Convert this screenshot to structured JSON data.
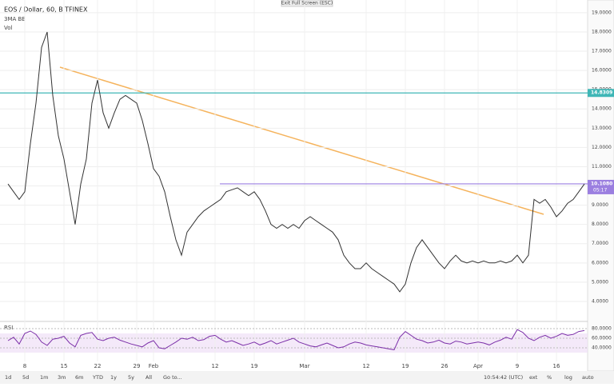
{
  "toolbar": {
    "exit": "Exit Full Screen (ESC)"
  },
  "legend": {
    "title": "EOS / Dollar, 60, BITFINEX",
    "indicators": [
      "3MA BB",
      "Vol"
    ]
  },
  "chart_data": [
    {
      "type": "line",
      "color": "#333333",
      "categories": [
        null,
        null,
        null,
        "8",
        null,
        null,
        null,
        null,
        null,
        null,
        "15",
        null,
        null,
        null,
        null,
        null,
        "22",
        null,
        null,
        null,
        null,
        null,
        null,
        "29",
        null,
        null,
        "Feb",
        null,
        null,
        null,
        null,
        null,
        null,
        null,
        null,
        null,
        null,
        "12",
        null,
        null,
        null,
        null,
        null,
        null,
        "19",
        null,
        null,
        null,
        null,
        null,
        null,
        null,
        null,
        "Mar",
        null,
        null,
        null,
        null,
        null,
        null,
        null,
        null,
        null,
        null,
        "12",
        null,
        null,
        null,
        null,
        null,
        null,
        "19",
        null,
        null,
        null,
        null,
        null,
        null,
        "26",
        null,
        null,
        null,
        null,
        null,
        "Apr",
        null,
        null,
        null,
        null,
        null,
        null,
        "9",
        null,
        null,
        null,
        null,
        null,
        null,
        "16",
        null,
        null,
        null,
        null,
        null
      ],
      "values": [
        10.1,
        9.7,
        9.3,
        9.7,
        12.2,
        14.3,
        17.2,
        18.0,
        14.7,
        12.6,
        11.4,
        9.7,
        8.0,
        10.1,
        11.4,
        14.3,
        15.5,
        13.8,
        13.0,
        13.8,
        14.5,
        14.7,
        14.5,
        14.3,
        13.4,
        12.2,
        10.9,
        10.5,
        9.7,
        8.4,
        7.2,
        6.4,
        7.6,
        8.0,
        8.4,
        8.7,
        8.9,
        9.1,
        9.3,
        9.7,
        9.8,
        9.9,
        9.7,
        9.5,
        9.7,
        9.3,
        8.7,
        8.0,
        7.8,
        8.0,
        7.8,
        8.0,
        7.8,
        8.2,
        8.4,
        8.2,
        8.0,
        7.8,
        7.6,
        7.2,
        6.4,
        6.0,
        5.7,
        5.7,
        6.0,
        5.7,
        5.5,
        5.3,
        5.1,
        4.9,
        4.5,
        4.9,
        6.0,
        6.8,
        7.2,
        6.8,
        6.4,
        6.0,
        5.7,
        6.1,
        6.4,
        6.1,
        6.0,
        6.1,
        6.0,
        6.1,
        6.0,
        6.0,
        6.1,
        6.0,
        6.1,
        6.4,
        6.0,
        6.4,
        9.3,
        9.1,
        9.3,
        8.9,
        8.4,
        8.7,
        9.1,
        9.3,
        9.7,
        10.1
      ],
      "ylim": [
        2.96,
        19.66
      ],
      "yticks": [
        {
          "value": 4,
          "label": "4.0000"
        },
        {
          "value": 5,
          "label": "5.0000"
        },
        {
          "value": 6,
          "label": "6.0000"
        },
        {
          "value": 7,
          "label": "7.0000"
        },
        {
          "value": 8,
          "label": "8.0000"
        },
        {
          "value": 9,
          "label": "9.0000"
        },
        {
          "value": 10,
          "label": "10.0000"
        },
        {
          "value": 11,
          "label": "11.0000"
        },
        {
          "value": 12,
          "label": "12.0000"
        },
        {
          "value": 13,
          "label": "13.0000"
        },
        {
          "value": 14,
          "label": "14.0000"
        },
        {
          "value": 15,
          "label": "15.0000"
        },
        {
          "value": 16,
          "label": "16.0000"
        },
        {
          "value": 17,
          "label": "17.0000"
        },
        {
          "value": 18,
          "label": "18.0000"
        },
        {
          "value": 19,
          "label": "19.0000"
        }
      ],
      "grid": true,
      "levels": [
        {
          "value": 14.8309,
          "label": "14.8309",
          "color": "#3fb6b6"
        },
        {
          "value": 10.108,
          "label": "10.1080",
          "color": "#9b7fe0"
        }
      ],
      "countdown": "05:17"
    },
    {
      "type": "line",
      "title": "RSI",
      "color": "#7b2fa8",
      "values": [
        55,
        62,
        48,
        70,
        75,
        68,
        52,
        45,
        58,
        60,
        64,
        50,
        42,
        66,
        70,
        72,
        58,
        55,
        60,
        62,
        56,
        52,
        48,
        45,
        42,
        50,
        55,
        40,
        38,
        45,
        52,
        60,
        58,
        62,
        55,
        57,
        64,
        66,
        58,
        52,
        55,
        50,
        45,
        48,
        52,
        46,
        50,
        55,
        48,
        52,
        56,
        60,
        52,
        48,
        44,
        42,
        46,
        50,
        45,
        40,
        42,
        48,
        52,
        50,
        46,
        44,
        42,
        40,
        38,
        36,
        62,
        74,
        66,
        58,
        55,
        50,
        52,
        56,
        50,
        48,
        54,
        52,
        48,
        50,
        52,
        50,
        46,
        52,
        56,
        62,
        58,
        78,
        72,
        60,
        55,
        62,
        66,
        60,
        64,
        70,
        66,
        68,
        74,
        76
      ],
      "ylim": [
        20,
        100
      ],
      "yticks": [
        {
          "value": 40,
          "label": "40.0000"
        },
        {
          "value": 60,
          "label": "60.0000"
        },
        {
          "value": 80,
          "label": "80.0000"
        }
      ]
    }
  ],
  "bottom_bar": {
    "ranges": [
      "1d",
      "5d",
      "1m",
      "3m",
      "6m",
      "YTD",
      "1y",
      "5y",
      "All",
      "Go to..."
    ],
    "clock": "10:54:42 (UTC)",
    "options": [
      "ext",
      "%",
      "log",
      "auto"
    ]
  }
}
